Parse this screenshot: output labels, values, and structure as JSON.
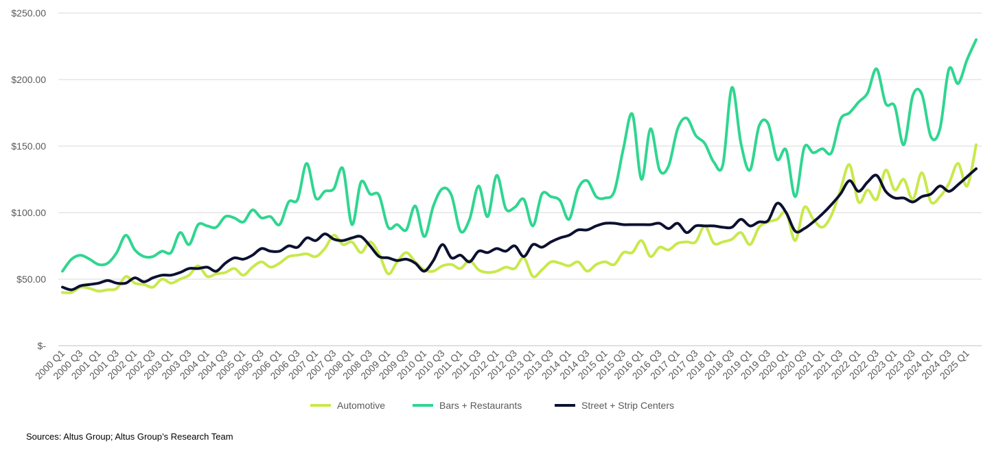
{
  "chart_data": {
    "type": "line",
    "categories": [
      "2000 Q1",
      null,
      "2000 Q3",
      null,
      "2001 Q1",
      null,
      "2001 Q3",
      null,
      "2002 Q1",
      null,
      "2002 Q3",
      null,
      "2003 Q1",
      null,
      "2003 Q3",
      null,
      "2004 Q1",
      null,
      "2004 Q3",
      null,
      "2005 Q1",
      null,
      "2005 Q3",
      null,
      "2006 Q1",
      null,
      "2006 Q3",
      null,
      "2007 Q1",
      null,
      "2007 Q3",
      null,
      "2008 Q1",
      null,
      "2008 Q3",
      null,
      "2009 Q1",
      null,
      "2009 Q3",
      null,
      "2010 Q1",
      null,
      "2010 Q3",
      null,
      "2011 Q1",
      null,
      "2011 Q3",
      null,
      "2012 Q1",
      null,
      "2012 Q3",
      null,
      "2013 Q1",
      null,
      "2013 Q3",
      null,
      "2014 Q1",
      null,
      "2014 Q3",
      null,
      "2015 Q1",
      null,
      "2015 Q3",
      null,
      "2016 Q1",
      null,
      "2016 Q3",
      null,
      "2017 Q1",
      null,
      "2017 Q3",
      null,
      "2018 Q1",
      null,
      "2018 Q3",
      null,
      "2019 Q1",
      null,
      "2019 Q3",
      null,
      "2020 Q1",
      null,
      "2020 Q3",
      null,
      "2021 Q1",
      null,
      "2021 Q3",
      null,
      "2022 Q1",
      null,
      "2022 Q3",
      null,
      "2023 Q1",
      null,
      "2023 Q3",
      null,
      "2024 Q1",
      null,
      "2024 Q3",
      null,
      "2025 Q1",
      null
    ],
    "series": [
      {
        "name": "Automotive",
        "color": "#c8e94c",
        "values": [
          40,
          40,
          44,
          43,
          41,
          42,
          43,
          52,
          47,
          46,
          44,
          50,
          47,
          50,
          53,
          60,
          52,
          54,
          55,
          58,
          53,
          59,
          63,
          59,
          62,
          67,
          68,
          69,
          67,
          73,
          83,
          76,
          78,
          70,
          78,
          69,
          54,
          63,
          70,
          63,
          57,
          56,
          60,
          61,
          58,
          64,
          57,
          55,
          56,
          59,
          58,
          66,
          52,
          57,
          63,
          62,
          60,
          63,
          56,
          61,
          63,
          61,
          70,
          70,
          79,
          67,
          74,
          72,
          77,
          78,
          78,
          90,
          77,
          78,
          80,
          85,
          76,
          89,
          93,
          95,
          100,
          79,
          104,
          95,
          89,
          98,
          117,
          136,
          108,
          117,
          110,
          132,
          117,
          125,
          110,
          130,
          108,
          112,
          122,
          137,
          120,
          151
        ]
      },
      {
        "name": "Bars + Restaurants",
        "color": "#2fd690",
        "values": [
          56,
          65,
          68,
          65,
          61,
          62,
          70,
          83,
          72,
          67,
          67,
          71,
          70,
          85,
          76,
          91,
          90,
          89,
          97,
          96,
          93,
          102,
          96,
          97,
          91,
          108,
          110,
          137,
          111,
          116,
          118,
          133,
          91,
          123,
          114,
          113,
          89,
          91,
          87,
          105,
          82,
          105,
          118,
          113,
          86,
          95,
          120,
          97,
          128,
          103,
          104,
          110,
          90,
          114,
          112,
          109,
          95,
          118,
          124,
          112,
          111,
          116,
          148,
          174,
          125,
          163,
          132,
          135,
          163,
          171,
          158,
          152,
          138,
          136,
          194,
          152,
          132,
          165,
          167,
          140,
          147,
          112,
          149,
          145,
          148,
          145,
          170,
          175,
          183,
          190,
          208,
          182,
          180,
          151,
          188,
          189,
          157,
          163,
          208,
          197,
          215,
          230
        ]
      },
      {
        "name": "Street + Strip Centers",
        "color": "#0c1130",
        "values": [
          44,
          42,
          45,
          46,
          47,
          49,
          47,
          47,
          51,
          48,
          51,
          53,
          53,
          55,
          58,
          58,
          59,
          56,
          62,
          66,
          65,
          68,
          73,
          71,
          71,
          75,
          74,
          81,
          79,
          84,
          80,
          79,
          81,
          82,
          75,
          67,
          66,
          64,
          65,
          62,
          56,
          64,
          76,
          66,
          68,
          63,
          71,
          70,
          73,
          71,
          75,
          67,
          76,
          74,
          78,
          81,
          83,
          87,
          87,
          90,
          92,
          92,
          91,
          91,
          91,
          91,
          92,
          88,
          92,
          85,
          90,
          90,
          90,
          89,
          89,
          95,
          90,
          93,
          94,
          107,
          100,
          86,
          88,
          93,
          99,
          106,
          114,
          124,
          116,
          123,
          128,
          116,
          111,
          111,
          108,
          112,
          114,
          120,
          116,
          121,
          127,
          133
        ]
      }
    ],
    "ylim": [
      0,
      250
    ],
    "yticks": [
      {
        "value": 0,
        "label": "$-"
      },
      {
        "value": 50,
        "label": "$50.00"
      },
      {
        "value": 100,
        "label": "$100.00"
      },
      {
        "value": 150,
        "label": "$150.00"
      },
      {
        "value": 200,
        "label": "$200.00"
      },
      {
        "value": 250,
        "label": "$250.00"
      }
    ],
    "grid": true,
    "legend": "bottom",
    "source": "Sources: Altus Group; Altus Group’s Research Team"
  }
}
